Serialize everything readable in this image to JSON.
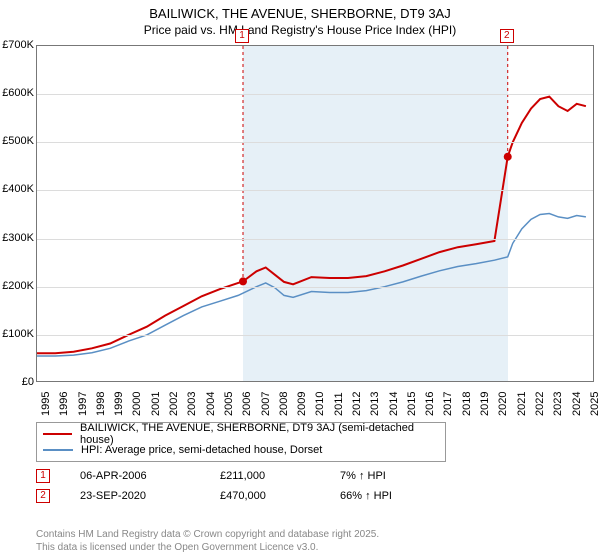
{
  "title": "BAILIWICK, THE AVENUE, SHERBORNE, DT9 3AJ",
  "subtitle": "Price paid vs. HM Land Registry's House Price Index (HPI)",
  "chart": {
    "type": "line",
    "background_color": "#ffffff",
    "grid_color": "#dcdcdc",
    "axis_color": "#777777",
    "highlight_band_color": "#e6f0f7",
    "x_axis": {
      "min": 1995,
      "max": 2025.5,
      "ticks": [
        1995,
        1996,
        1997,
        1998,
        1999,
        2000,
        2001,
        2002,
        2003,
        2004,
        2005,
        2006,
        2007,
        2008,
        2009,
        2010,
        2011,
        2012,
        2013,
        2014,
        2015,
        2016,
        2017,
        2018,
        2019,
        2020,
        2021,
        2022,
        2023,
        2024,
        2025
      ],
      "label_fontsize": 11,
      "label_rotation": -90
    },
    "y_axis": {
      "min": 0,
      "max": 700000,
      "ticks": [
        0,
        100000,
        200000,
        300000,
        400000,
        500000,
        600000,
        700000
      ],
      "tick_labels": [
        "£0",
        "£100K",
        "£200K",
        "£300K",
        "£400K",
        "£500K",
        "£600K",
        "£700K"
      ],
      "label_fontsize": 11
    },
    "highlight_band": {
      "x_start": 2006.26,
      "x_end": 2020.73
    },
    "series": [
      {
        "name": "property",
        "label": "BAILIWICK, THE AVENUE, SHERBORNE, DT9 3AJ (semi-detached house)",
        "color": "#cc0000",
        "line_width": 2,
        "points": [
          [
            1995,
            62000
          ],
          [
            1996,
            62000
          ],
          [
            1997,
            65000
          ],
          [
            1998,
            72000
          ],
          [
            1999,
            82000
          ],
          [
            2000,
            100000
          ],
          [
            2001,
            117000
          ],
          [
            2002,
            140000
          ],
          [
            2003,
            160000
          ],
          [
            2004,
            180000
          ],
          [
            2005,
            195000
          ],
          [
            2006,
            208000
          ],
          [
            2006.26,
            211000
          ],
          [
            2007,
            232000
          ],
          [
            2007.5,
            240000
          ],
          [
            2008,
            225000
          ],
          [
            2008.5,
            210000
          ],
          [
            2009,
            205000
          ],
          [
            2010,
            220000
          ],
          [
            2011,
            218000
          ],
          [
            2012,
            218000
          ],
          [
            2013,
            222000
          ],
          [
            2014,
            232000
          ],
          [
            2015,
            244000
          ],
          [
            2016,
            258000
          ],
          [
            2017,
            272000
          ],
          [
            2018,
            282000
          ],
          [
            2019,
            288000
          ],
          [
            2020,
            295000
          ],
          [
            2020.73,
            470000
          ],
          [
            2021,
            500000
          ],
          [
            2021.5,
            540000
          ],
          [
            2022,
            570000
          ],
          [
            2022.5,
            590000
          ],
          [
            2023,
            595000
          ],
          [
            2023.5,
            575000
          ],
          [
            2024,
            565000
          ],
          [
            2024.5,
            580000
          ],
          [
            2025,
            575000
          ]
        ]
      },
      {
        "name": "hpi",
        "label": "HPI: Average price, semi-detached house, Dorset",
        "color": "#5a8fc4",
        "line_width": 1.5,
        "points": [
          [
            1995,
            56000
          ],
          [
            1996,
            56000
          ],
          [
            1997,
            58000
          ],
          [
            1998,
            63000
          ],
          [
            1999,
            72000
          ],
          [
            2000,
            87000
          ],
          [
            2001,
            100000
          ],
          [
            2002,
            120000
          ],
          [
            2003,
            140000
          ],
          [
            2004,
            158000
          ],
          [
            2005,
            170000
          ],
          [
            2006,
            182000
          ],
          [
            2007,
            200000
          ],
          [
            2007.5,
            208000
          ],
          [
            2008,
            198000
          ],
          [
            2008.5,
            182000
          ],
          [
            2009,
            178000
          ],
          [
            2010,
            190000
          ],
          [
            2011,
            188000
          ],
          [
            2012,
            188000
          ],
          [
            2013,
            192000
          ],
          [
            2014,
            200000
          ],
          [
            2015,
            210000
          ],
          [
            2016,
            222000
          ],
          [
            2017,
            233000
          ],
          [
            2018,
            242000
          ],
          [
            2019,
            248000
          ],
          [
            2020,
            255000
          ],
          [
            2020.73,
            262000
          ],
          [
            2021,
            290000
          ],
          [
            2021.5,
            320000
          ],
          [
            2022,
            340000
          ],
          [
            2022.5,
            350000
          ],
          [
            2023,
            352000
          ],
          [
            2023.5,
            345000
          ],
          [
            2024,
            342000
          ],
          [
            2024.5,
            348000
          ],
          [
            2025,
            345000
          ]
        ]
      }
    ],
    "sale_markers": [
      {
        "id": "1",
        "x": 2006.26,
        "y": 211000,
        "marker_y_top": true
      },
      {
        "id": "2",
        "x": 2020.73,
        "y": 470000,
        "marker_y_top": true
      }
    ]
  },
  "legend": {
    "rows": [
      {
        "color": "#cc0000",
        "label": "BAILIWICK, THE AVENUE, SHERBORNE, DT9 3AJ (semi-detached house)"
      },
      {
        "color": "#5a8fc4",
        "label": "HPI: Average price, semi-detached house, Dorset"
      }
    ]
  },
  "transactions": [
    {
      "id": "1",
      "date": "06-APR-2006",
      "price": "£211,000",
      "delta": "7% ↑ HPI"
    },
    {
      "id": "2",
      "date": "23-SEP-2020",
      "price": "£470,000",
      "delta": "66% ↑ HPI"
    }
  ],
  "copyright": {
    "line1": "Contains HM Land Registry data © Crown copyright and database right 2025.",
    "line2": "This data is licensed under the Open Government Licence v3.0."
  }
}
